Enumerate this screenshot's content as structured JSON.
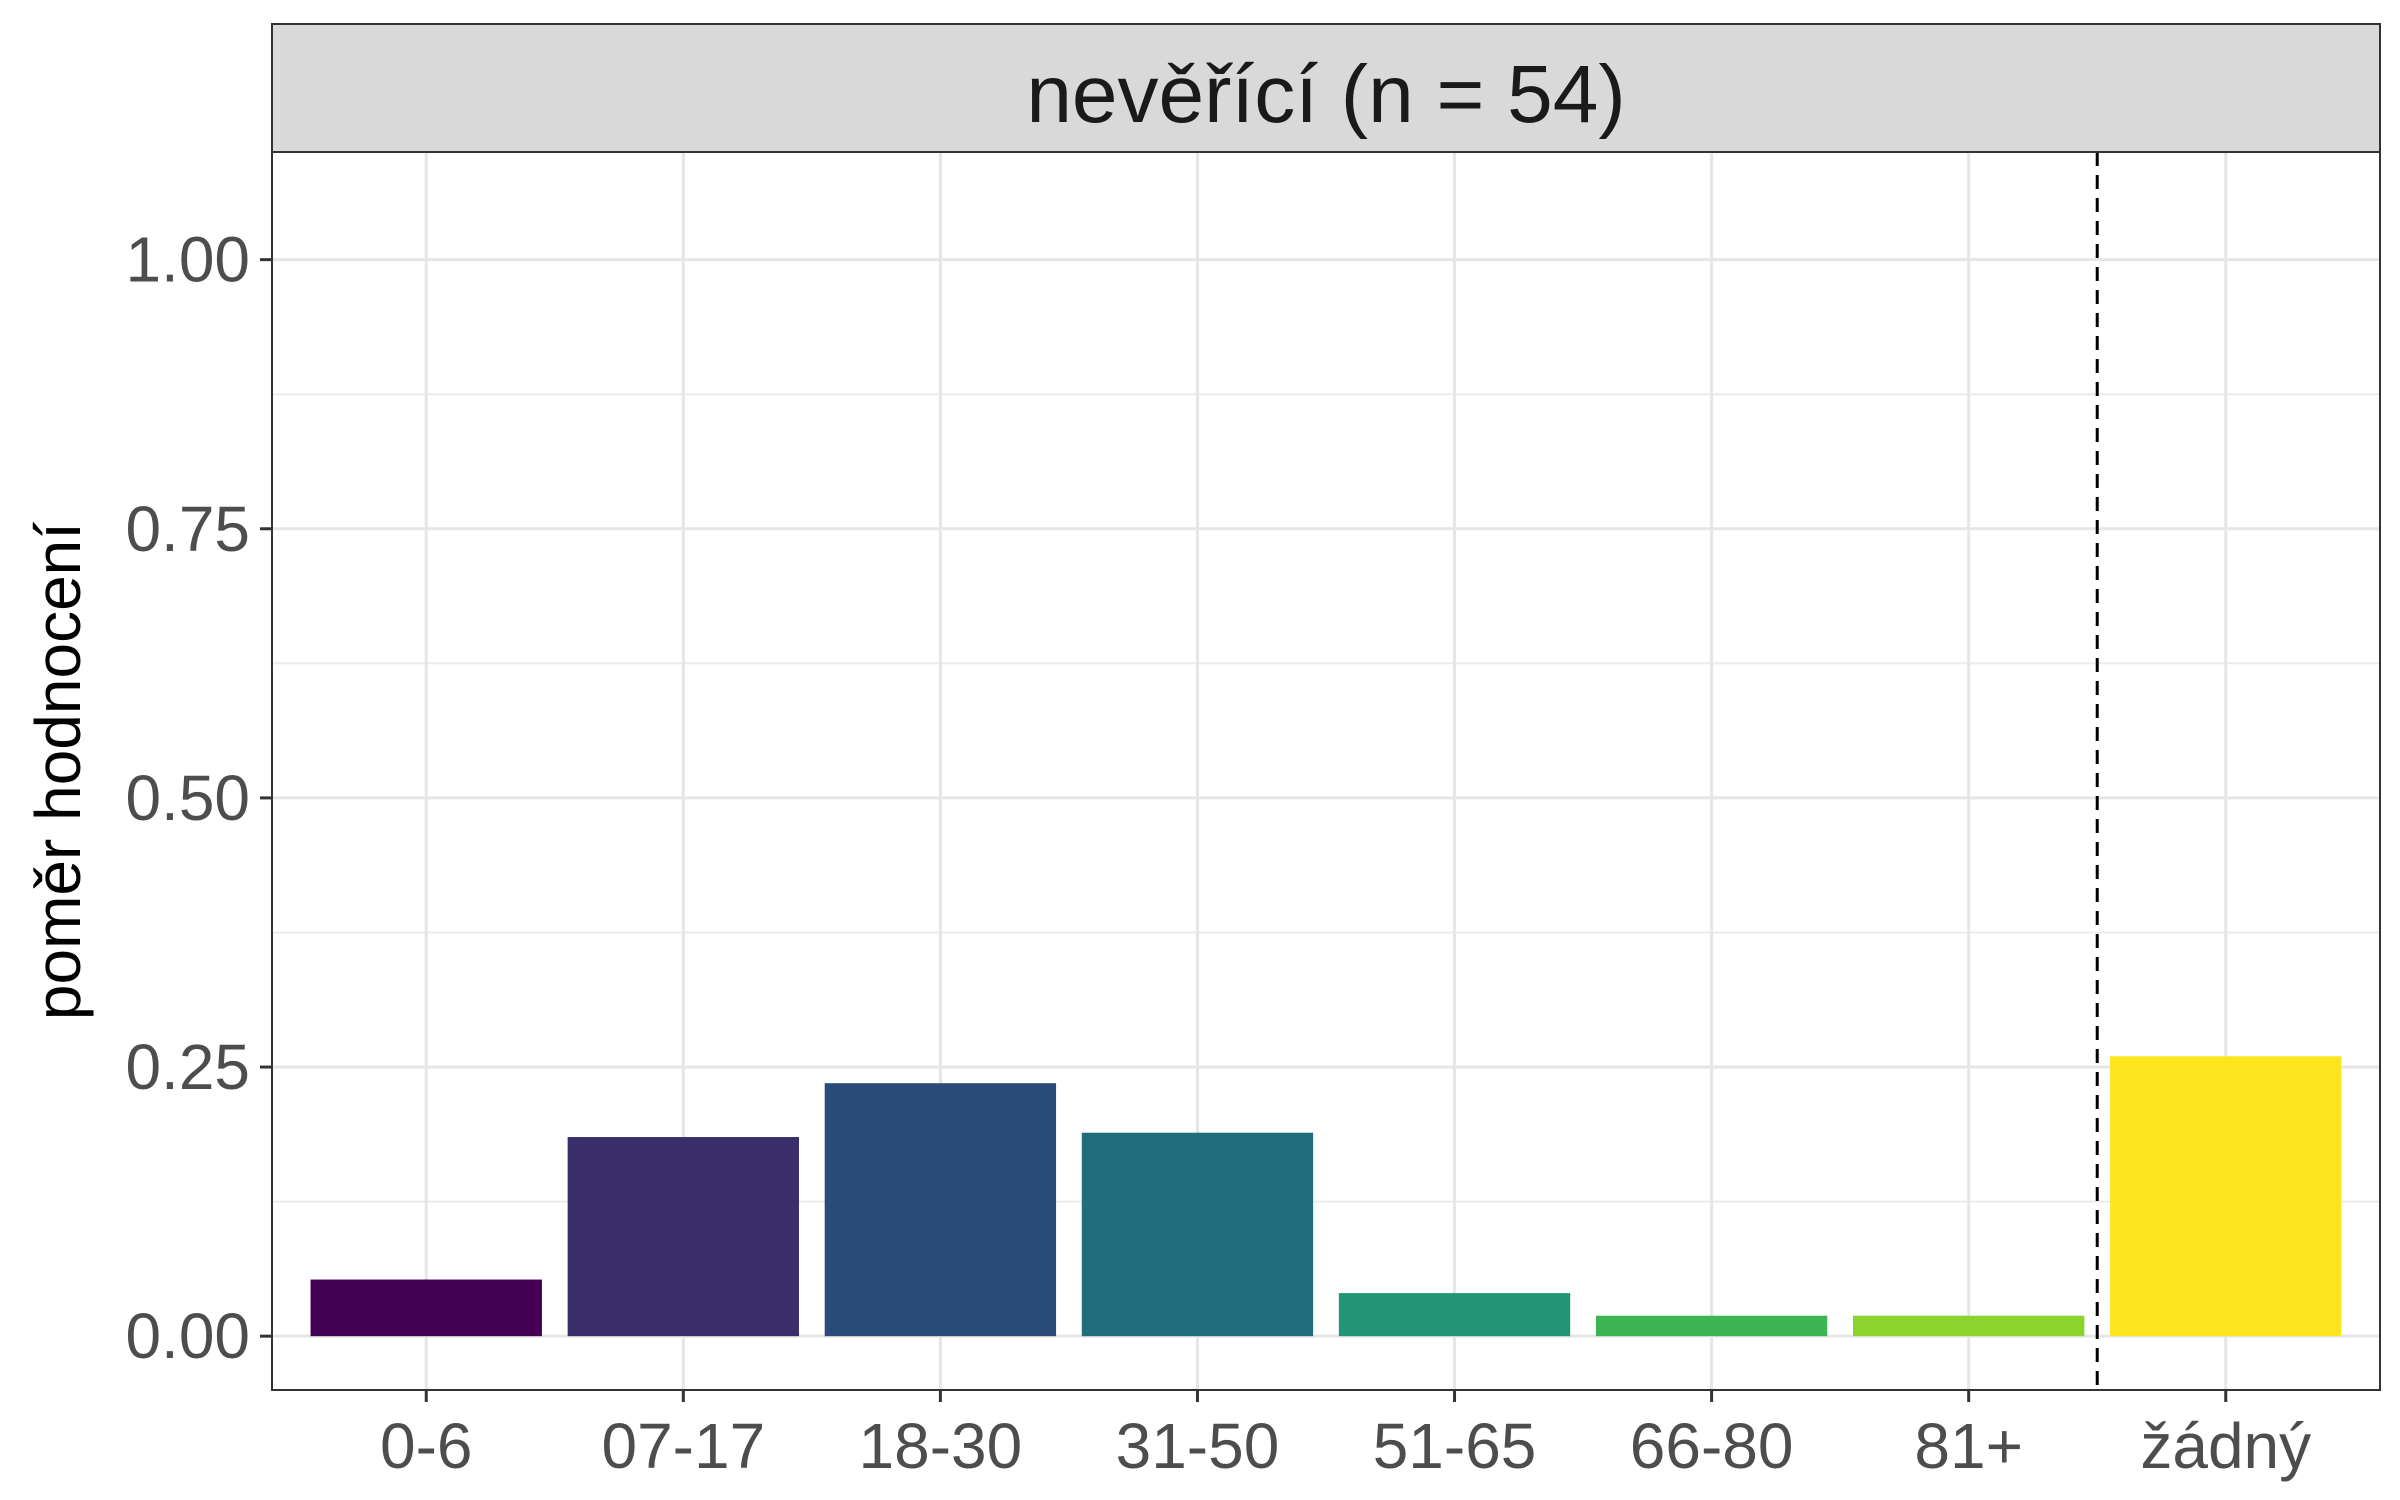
{
  "chart_data": {
    "type": "bar",
    "facet_title": "nevěřící (n = 54)",
    "xlabel": "",
    "ylabel": "poměr hodnocení",
    "categories": [
      "0-6",
      "07-17",
      "18-30",
      "31-50",
      "51-65",
      "66-80",
      "81+",
      "žádný"
    ],
    "values": [
      0.0526,
      0.185,
      0.235,
      0.189,
      0.04,
      0.019,
      0.019,
      0.26
    ],
    "colors": [
      "#440154",
      "#3b2f6b",
      "#2b4b7a",
      "#216d7b",
      "#229576",
      "#3eb554",
      "#8bd42e",
      "#fde51e"
    ],
    "ylim": [
      -0.05,
      1.1
    ],
    "yticks": [
      0.0,
      0.25,
      0.5,
      0.75,
      1.0
    ],
    "ytick_labels": [
      "0.00",
      "0.25",
      "0.50",
      "0.75",
      "1.00"
    ],
    "reference_line": {
      "style": "dashed",
      "between": [
        "81+",
        "žádný"
      ]
    },
    "grid": true,
    "legend": "none"
  }
}
